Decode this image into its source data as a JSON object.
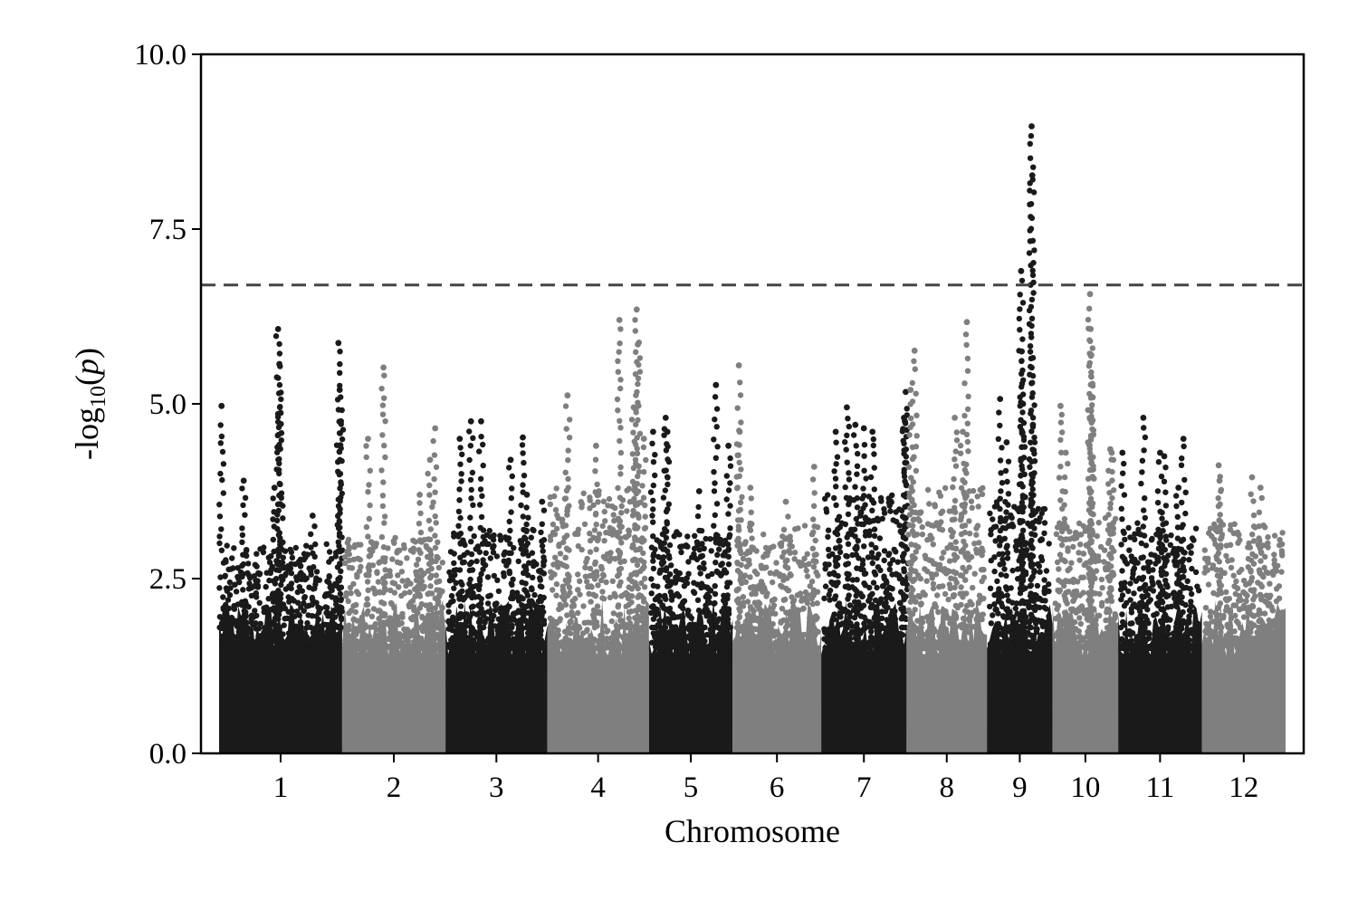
{
  "chart_data": {
    "type": "scatter",
    "subtype": "manhattan",
    "title": "",
    "xlabel": "Chromosome",
    "ylabel": "-log10(p)",
    "ylabel_parts": {
      "prefix": "-log",
      "subscript": "10",
      "open": "(",
      "var": "p",
      "close": ")"
    },
    "ylim": [
      0,
      10
    ],
    "yticks": [
      {
        "value": 0,
        "label": "0.0"
      },
      {
        "value": 2.5,
        "label": "2.5"
      },
      {
        "value": 5,
        "label": "5.0"
      },
      {
        "value": 7.5,
        "label": "7.5"
      },
      {
        "value": 10,
        "label": "10.0"
      }
    ],
    "significance_threshold": 6.7,
    "threshold_style": "dashed",
    "grid": false,
    "legend": "none",
    "colors": {
      "odd_chromosomes": "#1a1a1a",
      "even_chromosomes": "#7f7f7f",
      "threshold": "#444444"
    },
    "chromosomes": [
      {
        "name": "1",
        "relative_length": 1.5,
        "base_max": 2.4,
        "peaks": [
          [
            0.02,
            4.97
          ],
          [
            0.48,
            6.07
          ],
          [
            0.49,
            5.57
          ],
          [
            0.5,
            4.87
          ],
          [
            0.76,
            3.4
          ],
          [
            0.97,
            5.87
          ],
          [
            0.98,
            5.2
          ],
          [
            0.99,
            4.75
          ],
          [
            0.45,
            3.8
          ],
          [
            0.2,
            3.9
          ]
        ]
      },
      {
        "name": "2",
        "relative_length": 1.26,
        "base_max": 2.5,
        "peaks": [
          [
            0.4,
            5.52
          ],
          [
            0.25,
            4.5
          ],
          [
            0.85,
            4.2
          ],
          [
            0.9,
            4.65
          ],
          [
            0.75,
            3.7
          ]
        ]
      },
      {
        "name": "3",
        "relative_length": 1.24,
        "base_max": 2.6,
        "peaks": [
          [
            0.14,
            4.5
          ],
          [
            0.25,
            4.75
          ],
          [
            0.35,
            4.75
          ],
          [
            0.64,
            4.2
          ],
          [
            0.76,
            4.52
          ],
          [
            0.8,
            3.7
          ],
          [
            0.95,
            3.6
          ]
        ]
      },
      {
        "name": "4",
        "relative_length": 1.24,
        "base_max": 3.2,
        "peaks": [
          [
            0.2,
            5.12
          ],
          [
            0.48,
            4.4
          ],
          [
            0.71,
            6.2
          ],
          [
            0.88,
            6.35
          ],
          [
            0.89,
            5.85
          ],
          [
            0.85,
            4.95
          ],
          [
            0.95,
            4.5
          ]
        ]
      },
      {
        "name": "5",
        "relative_length": 1.02,
        "base_max": 2.6,
        "peaks": [
          [
            0.05,
            4.6
          ],
          [
            0.2,
            4.8
          ],
          [
            0.22,
            4.6
          ],
          [
            0.6,
            3.75
          ],
          [
            0.8,
            5.27
          ],
          [
            0.95,
            4.4
          ]
        ]
      },
      {
        "name": "6",
        "relative_length": 1.08,
        "base_max": 2.7,
        "peaks": [
          [
            0.07,
            5.55
          ],
          [
            0.08,
            4.6
          ],
          [
            0.2,
            3.8
          ],
          [
            0.6,
            3.6
          ],
          [
            0.92,
            4.1
          ]
        ]
      },
      {
        "name": "7",
        "relative_length": 1.04,
        "base_max": 3.1,
        "peaks": [
          [
            0.17,
            4.6
          ],
          [
            0.3,
            4.95
          ],
          [
            0.4,
            4.7
          ],
          [
            0.5,
            4.65
          ],
          [
            0.6,
            4.6
          ],
          [
            0.97,
            4.8
          ],
          [
            0.98,
            4.75
          ],
          [
            0.99,
            5.17
          ]
        ]
      },
      {
        "name": "8",
        "relative_length": 0.98,
        "base_max": 3.2,
        "peaks": [
          [
            0.1,
            5.76
          ],
          [
            0.05,
            5.2
          ],
          [
            0.6,
            4.8
          ],
          [
            0.75,
            6.17
          ],
          [
            0.7,
            4.6
          ]
        ]
      },
      {
        "name": "9",
        "relative_length": 0.8,
        "base_max": 3.0,
        "peaks": [
          [
            0.2,
            5.07
          ],
          [
            0.52,
            6.9
          ],
          [
            0.53,
            5.75
          ],
          [
            0.55,
            5.0
          ],
          [
            0.68,
            8.97
          ],
          [
            0.69,
            8.27
          ],
          [
            0.7,
            4.7
          ],
          [
            0.3,
            4.45
          ]
        ]
      },
      {
        "name": "10",
        "relative_length": 0.8,
        "base_max": 2.8,
        "peaks": [
          [
            0.12,
            4.97
          ],
          [
            0.2,
            4.3
          ],
          [
            0.57,
            6.57
          ],
          [
            0.58,
            6.07
          ],
          [
            0.59,
            5.7
          ],
          [
            0.6,
            5.1
          ],
          [
            0.88,
            4.35
          ],
          [
            0.9,
            4.3
          ]
        ]
      },
      {
        "name": "11",
        "relative_length": 1.02,
        "base_max": 2.7,
        "peaks": [
          [
            0.05,
            4.3
          ],
          [
            0.3,
            4.8
          ],
          [
            0.5,
            4.3
          ],
          [
            0.55,
            4.25
          ],
          [
            0.78,
            4.5
          ],
          [
            0.72,
            3.8
          ]
        ]
      },
      {
        "name": "12",
        "relative_length": 1.02,
        "base_max": 2.7,
        "peaks": [
          [
            0.2,
            4.12
          ],
          [
            0.21,
            3.9
          ],
          [
            0.6,
            3.95
          ],
          [
            0.7,
            3.8
          ]
        ]
      }
    ]
  }
}
